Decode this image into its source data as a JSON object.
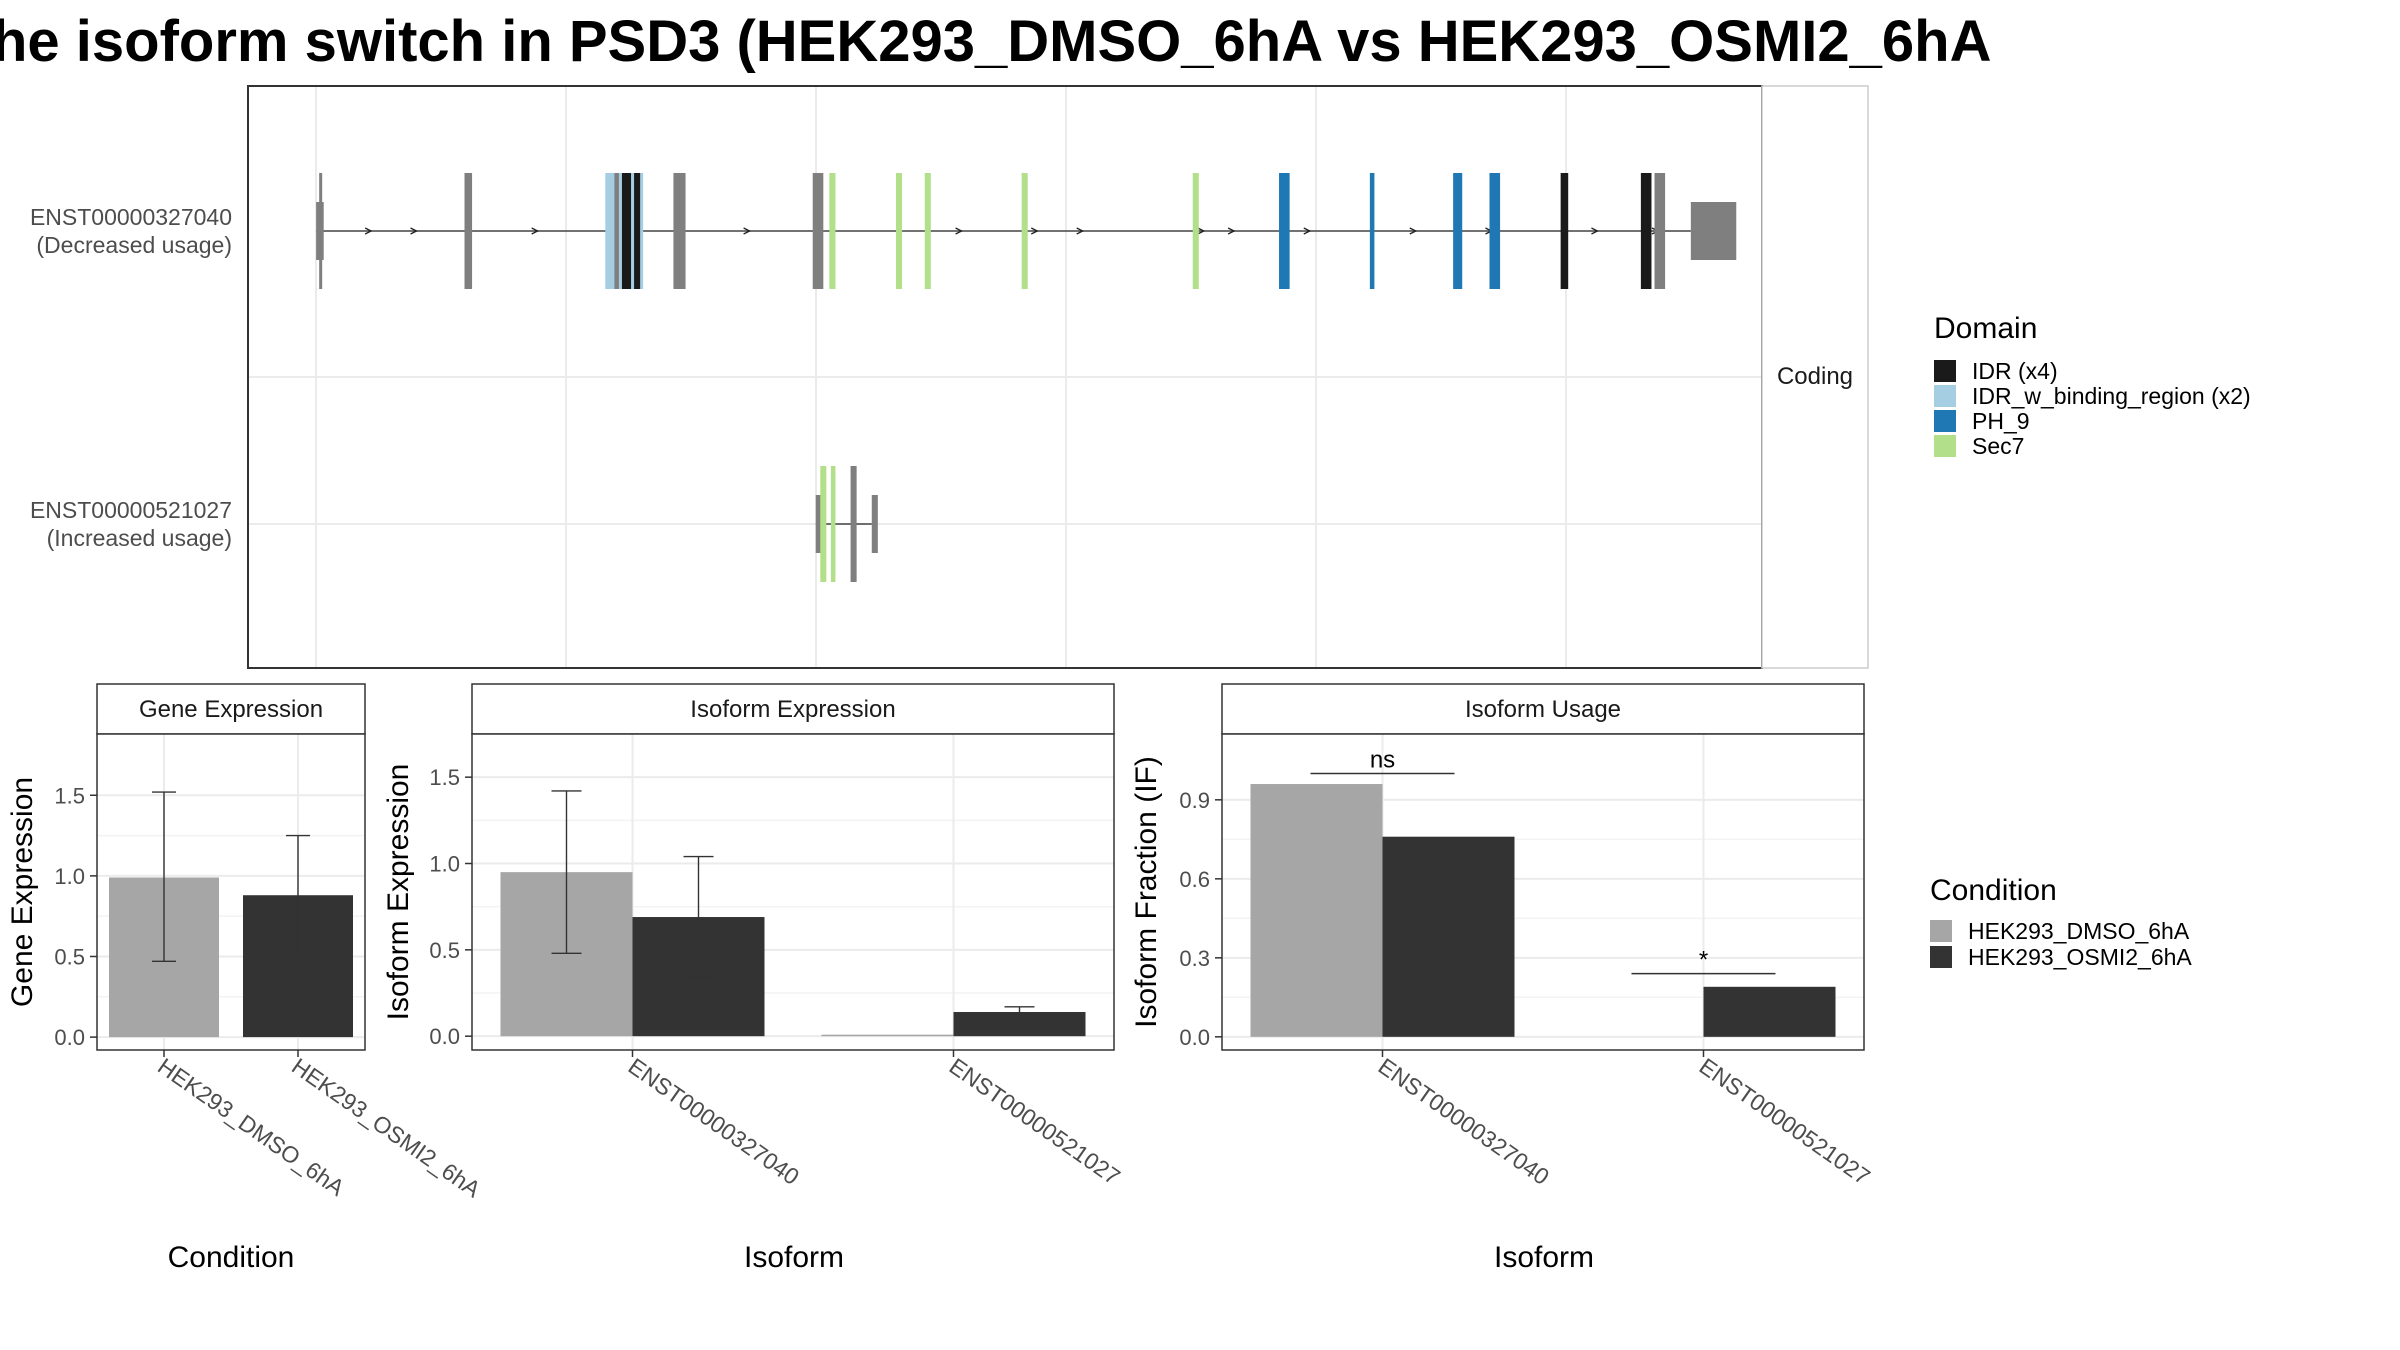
{
  "title": "he isoform switch in PSD3 (HEK293_DMSO_6hA vs HEK293_OSMI2_6hA",
  "colors": {
    "IDR": "#1a1a1a",
    "IDR_w_binding_region": "#a6cee3",
    "PH_9": "#1f78b4",
    "Sec7": "#b2df8a",
    "exon": "#7f7f7f",
    "HEK293_DMSO_6hA": "#a6a6a6",
    "HEK293_OSMI2_6hA": "#333333",
    "frame": "#333333",
    "grid": "#ebebeb"
  },
  "chart_data": [
    {
      "type": "gene-structure",
      "rows": [
        {
          "id": "ENST00000327040",
          "sub": "(Decreased usage)"
        },
        {
          "id": "ENST00000521027",
          "sub": "(Increased usage)"
        }
      ],
      "facet_label": "Coding",
      "legend": {
        "title": "Domain",
        "items": [
          {
            "label": "IDR (x4)",
            "key": "IDR"
          },
          {
            "label": "IDR_w_binding_region (x2)",
            "key": "IDR_w_binding_region"
          },
          {
            "label": "PH_9",
            "key": "PH_9"
          },
          {
            "label": "Sec7",
            "key": "Sec7"
          }
        ]
      },
      "exons": [
        {
          "row": 0,
          "pos": 0.045,
          "type": "exon",
          "w": 0.005,
          "tall": false
        },
        {
          "row": 0,
          "pos": 0.047,
          "type": "exon",
          "w": 0.002,
          "tall": true
        },
        {
          "row": 0,
          "pos": 0.143,
          "type": "exon",
          "w": 0.005,
          "tall": true
        },
        {
          "row": 0,
          "pos": 0.236,
          "type": "IDR_w_binding_region",
          "w": 0.025,
          "tall": true
        },
        {
          "row": 0,
          "pos": 0.242,
          "type": "exon",
          "w": 0.003,
          "tall": true
        },
        {
          "row": 0,
          "pos": 0.247,
          "type": "IDR",
          "w": 0.006,
          "tall": true
        },
        {
          "row": 0,
          "pos": 0.255,
          "type": "IDR",
          "w": 0.004,
          "tall": true
        },
        {
          "row": 0,
          "pos": 0.281,
          "type": "exon",
          "w": 0.008,
          "tall": true
        },
        {
          "row": 0,
          "pos": 0.373,
          "type": "exon",
          "w": 0.007,
          "tall": true
        },
        {
          "row": 0,
          "pos": 0.384,
          "type": "Sec7",
          "w": 0.004,
          "tall": true
        },
        {
          "row": 0,
          "pos": 0.428,
          "type": "Sec7",
          "w": 0.004,
          "tall": true
        },
        {
          "row": 0,
          "pos": 0.447,
          "type": "Sec7",
          "w": 0.004,
          "tall": true
        },
        {
          "row": 0,
          "pos": 0.511,
          "type": "Sec7",
          "w": 0.004,
          "tall": true
        },
        {
          "row": 0,
          "pos": 0.624,
          "type": "Sec7",
          "w": 0.004,
          "tall": true
        },
        {
          "row": 0,
          "pos": 0.681,
          "type": "PH_9",
          "w": 0.007,
          "tall": true
        },
        {
          "row": 0,
          "pos": 0.741,
          "type": "PH_9",
          "w": 0.003,
          "tall": true
        },
        {
          "row": 0,
          "pos": 0.796,
          "type": "PH_9",
          "w": 0.006,
          "tall": true
        },
        {
          "row": 0,
          "pos": 0.82,
          "type": "PH_9",
          "w": 0.007,
          "tall": true
        },
        {
          "row": 0,
          "pos": 0.867,
          "type": "IDR",
          "w": 0.005,
          "tall": true
        },
        {
          "row": 0,
          "pos": 0.92,
          "type": "IDR",
          "w": 0.007,
          "tall": true
        },
        {
          "row": 0,
          "pos": 0.929,
          "type": "exon",
          "w": 0.007,
          "tall": true
        },
        {
          "row": 0,
          "pos": 0.953,
          "type": "exon",
          "w": 0.03,
          "tall": false
        },
        {
          "row": 1,
          "pos": 0.375,
          "type": "exon",
          "w": 0.005,
          "tall": false
        },
        {
          "row": 1,
          "pos": 0.378,
          "type": "Sec7",
          "w": 0.004,
          "tall": true
        },
        {
          "row": 1,
          "pos": 0.385,
          "type": "Sec7",
          "w": 0.003,
          "tall": true
        },
        {
          "row": 1,
          "pos": 0.398,
          "type": "exon",
          "w": 0.004,
          "tall": true
        },
        {
          "row": 1,
          "pos": 0.412,
          "type": "exon",
          "w": 0.004,
          "tall": false
        }
      ]
    },
    {
      "type": "bar",
      "panel": "Gene Expression",
      "xlabel": "Condition",
      "ylabel": "Gene Expression",
      "categories": [
        "HEK293_DMSO_6hA",
        "HEK293_OSMI2_6hA"
      ],
      "values": [
        0.99,
        0.88
      ],
      "errors": [
        [
          0.47,
          1.52
        ],
        [
          0.51,
          1.25
        ]
      ],
      "yticks": [
        "0.0",
        "0.5",
        "1.0",
        "1.5"
      ],
      "ylim": [
        -0.08,
        1.88
      ]
    },
    {
      "type": "bar",
      "panel": "Isoform Expression",
      "xlabel": "Isoform",
      "ylabel": "Isoform Expression",
      "categories": [
        "ENST00000327040",
        "ENST00000521027"
      ],
      "series": [
        {
          "name": "HEK293_DMSO_6hA",
          "values": [
            0.95,
            0.0
          ],
          "errors": [
            [
              0.48,
              1.42
            ],
            [
              0.0,
              0.0
            ]
          ]
        },
        {
          "name": "HEK293_OSMI2_6hA",
          "values": [
            0.69,
            0.14
          ],
          "errors": [
            [
              0.34,
              1.04
            ],
            [
              0.12,
              0.17
            ]
          ]
        }
      ],
      "yticks": [
        "0.0",
        "0.5",
        "1.0",
        "1.5"
      ],
      "ylim": [
        -0.08,
        1.75
      ]
    },
    {
      "type": "bar",
      "panel": "Isoform Usage",
      "xlabel": "Isoform",
      "ylabel": "Isoform Fraction (IF)",
      "categories": [
        "ENST00000327040",
        "ENST00000521027"
      ],
      "series": [
        {
          "name": "HEK293_DMSO_6hA",
          "values": [
            0.96,
            0.0
          ]
        },
        {
          "name": "HEK293_OSMI2_6hA",
          "values": [
            0.76,
            0.19
          ]
        }
      ],
      "significance": [
        "ns",
        "*"
      ],
      "significance_y": [
        1.0,
        0.24
      ],
      "yticks": [
        "0.0",
        "0.3",
        "0.6",
        "0.9"
      ],
      "ylim": [
        -0.05,
        1.15
      ]
    }
  ],
  "legend_condition": {
    "title": "Condition",
    "items": [
      {
        "label": "HEK293_DMSO_6hA",
        "key": "HEK293_DMSO_6hA"
      },
      {
        "label": "HEK293_OSMI2_6hA",
        "key": "HEK293_OSMI2_6hA"
      }
    ]
  }
}
